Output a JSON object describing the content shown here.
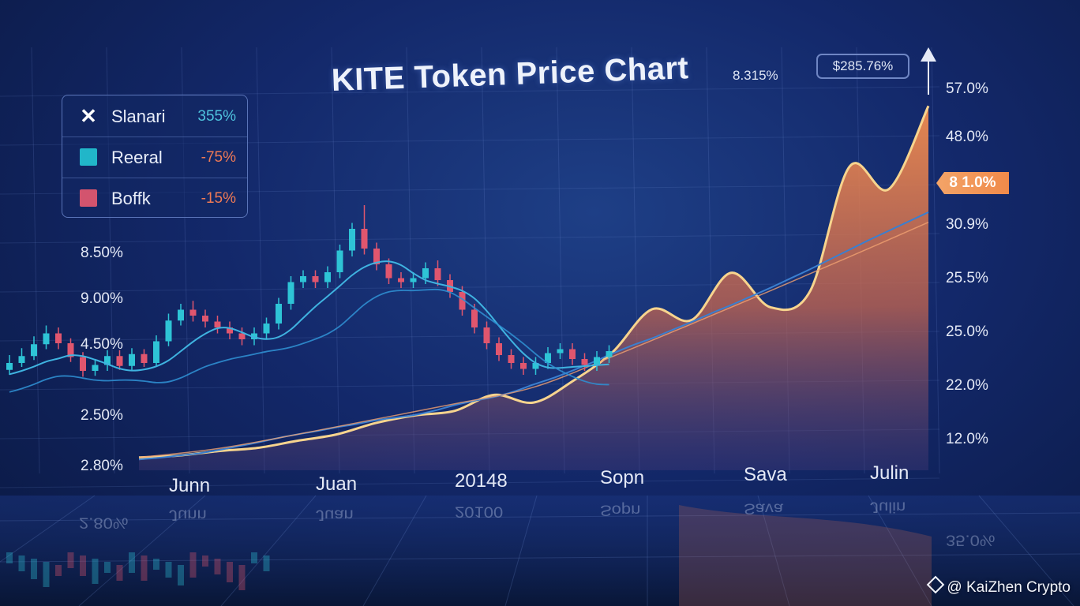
{
  "title": "KITE Token Price Chart",
  "title_change": "8.315%",
  "price_box": "$285.76%",
  "badge": "8 1.0%",
  "legend": [
    {
      "name": "Slanari",
      "value": "355%",
      "marker": "x-icon",
      "color": "#4fc3dd"
    },
    {
      "name": "Reeral",
      "value": "-75%",
      "marker": "square",
      "color": "#21b6c9",
      "value_color": "#f07a55"
    },
    {
      "name": "Boffk",
      "value": "-15%",
      "marker": "square",
      "color": "#d3546e",
      "value_color": "#f07a55"
    }
  ],
  "left_axis": [
    "8.50%",
    "9.00%",
    "4.50%",
    "2.50%",
    "2.80%"
  ],
  "right_axis": [
    "57.0%",
    "48.0%",
    "30.9%",
    "25.5%",
    "25.0%",
    "22.0%",
    "12.0%"
  ],
  "x_axis": [
    "Junn",
    "Juan",
    "20148",
    "Sopn",
    "Sava",
    "Julin"
  ],
  "reflection": {
    "left": "2.80%",
    "labels": [
      "Junn",
      "Juan",
      "20100",
      "Sopn",
      "Sava",
      "Julin"
    ],
    "right": "35.0%"
  },
  "watermark": "@ KaiZhen Crypto",
  "colors": {
    "up": "#2ec4d6",
    "down": "#e0566e",
    "area": "#ef8a4e",
    "line": "#3aa3d8"
  },
  "chart_data": {
    "type": "line",
    "title": "KITE Token Price Chart",
    "series": [
      {
        "name": "Slanari",
        "x": [
          0,
          1,
          2,
          3,
          4,
          5,
          6,
          7,
          8,
          9,
          10,
          11,
          12,
          13,
          14,
          15,
          16,
          17,
          18,
          19,
          20,
          21,
          22,
          23,
          24,
          25,
          26,
          27,
          28,
          29,
          30,
          31,
          32,
          33,
          34,
          35,
          36,
          37,
          38,
          39,
          40
        ],
        "values": [
          2.0,
          2.3,
          2.7,
          3.1,
          3.7,
          4.4,
          5.1,
          5.9,
          6.6,
          7.2,
          7.9,
          8.5,
          9.2,
          9.7,
          10.2,
          11.0,
          12.0,
          12.8,
          13.5,
          14.5,
          15.8,
          17.0,
          18.4,
          19.9,
          21.5,
          23.0,
          24.3,
          25.8,
          27.3,
          28.9,
          30.4,
          32.0,
          33.6,
          35.3,
          37.0,
          38.8,
          40.6,
          42.4,
          44.1,
          45.8,
          47.5
        ]
      },
      {
        "name": "Reeral",
        "x": [
          0,
          4,
          8,
          12,
          16,
          20,
          24,
          28,
          32,
          36,
          40
        ],
        "values": [
          2.0,
          3.4,
          5.6,
          8.0,
          10.4,
          13.0,
          17.8,
          22.9,
          28.1,
          33.4,
          38.8
        ]
      },
      {
        "name": "Boffk",
        "x": [
          0,
          2,
          4,
          6,
          8,
          10,
          12,
          14,
          16,
          18,
          20,
          22,
          24,
          26,
          28,
          30,
          32,
          34,
          36,
          38,
          40
        ],
        "values": [
          2.0,
          2.3,
          3.0,
          3.5,
          4.6,
          5.6,
          7.4,
          8.6,
          9.3,
          11.8,
          10.6,
          14.0,
          18.5,
          25.2,
          23.5,
          30.9,
          25.5,
          28.0,
          47.5,
          44.0,
          57.0
        ]
      }
    ],
    "yrange": [
      0,
      60
    ],
    "grid": true,
    "legend_position": "top-left"
  },
  "candles": [
    [
      0,
      28.9,
      29.6,
      30.4,
      28.4
    ],
    [
      1,
      29.6,
      30.3,
      31.1,
      29.2
    ],
    [
      2,
      30.3,
      31.5,
      32.3,
      29.9
    ],
    [
      3,
      31.5,
      32.6,
      33.4,
      31.0
    ],
    [
      4,
      32.6,
      31.6,
      33.2,
      31.0
    ],
    [
      5,
      31.6,
      30.2,
      32.1,
      29.7
    ],
    [
      6,
      30.2,
      28.8,
      30.7,
      28.2
    ],
    [
      7,
      28.8,
      29.4,
      30.0,
      28.3
    ],
    [
      8,
      29.4,
      30.3,
      30.9,
      28.8
    ],
    [
      9,
      30.3,
      29.3,
      30.9,
      28.9
    ],
    [
      10,
      29.3,
      30.5,
      31.1,
      28.9
    ],
    [
      11,
      30.5,
      29.6,
      31.0,
      29.2
    ],
    [
      12,
      29.6,
      31.8,
      32.4,
      29.2
    ],
    [
      13,
      31.8,
      33.9,
      34.6,
      31.3
    ],
    [
      14,
      33.9,
      35.0,
      35.6,
      33.4
    ],
    [
      15,
      35.0,
      34.4,
      35.9,
      33.8
    ],
    [
      16,
      34.4,
      33.8,
      35.0,
      33.2
    ],
    [
      17,
      33.8,
      33.2,
      34.4,
      32.6
    ],
    [
      18,
      33.2,
      32.6,
      33.8,
      32.0
    ],
    [
      19,
      32.6,
      32.0,
      33.2,
      31.4
    ],
    [
      20,
      32.0,
      32.6,
      33.2,
      31.4
    ],
    [
      21,
      32.6,
      33.6,
      34.2,
      32.0
    ],
    [
      22,
      33.6,
      35.6,
      36.2,
      33.0
    ],
    [
      23,
      35.6,
      37.8,
      38.4,
      35.0
    ],
    [
      24,
      37.8,
      38.4,
      39.0,
      37.2
    ],
    [
      25,
      38.4,
      37.8,
      39.0,
      37.2
    ],
    [
      26,
      37.8,
      38.8,
      39.4,
      37.2
    ],
    [
      27,
      38.8,
      41.0,
      41.6,
      38.2
    ],
    [
      28,
      41.0,
      43.2,
      43.8,
      40.4
    ],
    [
      29,
      43.2,
      41.2,
      45.6,
      40.6
    ],
    [
      30,
      41.2,
      39.6,
      41.8,
      39.0
    ],
    [
      31,
      39.6,
      38.2,
      40.2,
      37.6
    ],
    [
      32,
      38.2,
      37.8,
      38.8,
      37.2
    ],
    [
      33,
      37.8,
      38.2,
      38.8,
      37.2
    ],
    [
      34,
      38.2,
      39.2,
      39.8,
      37.6
    ],
    [
      35,
      39.2,
      38.0,
      40.0,
      37.4
    ],
    [
      36,
      38.0,
      36.8,
      38.6,
      36.2
    ],
    [
      37,
      36.8,
      35.0,
      37.4,
      34.4
    ],
    [
      38,
      35.0,
      33.2,
      35.6,
      32.6
    ],
    [
      39,
      33.2,
      31.6,
      33.8,
      31.0
    ],
    [
      40,
      31.6,
      30.4,
      32.2,
      29.8
    ],
    [
      41,
      30.4,
      29.6,
      31.0,
      29.0
    ],
    [
      42,
      29.6,
      29.0,
      30.2,
      28.4
    ],
    [
      43,
      29.0,
      29.6,
      30.2,
      28.4
    ],
    [
      44,
      29.6,
      30.6,
      31.2,
      29.0
    ],
    [
      45,
      30.6,
      31.0,
      31.6,
      30.0
    ],
    [
      46,
      31.0,
      30.0,
      31.6,
      29.4
    ],
    [
      47,
      30.0,
      29.4,
      30.6,
      28.8
    ],
    [
      48,
      29.4,
      30.2,
      30.8,
      28.8
    ],
    [
      49,
      30.2,
      30.8,
      31.4,
      29.6
    ]
  ]
}
